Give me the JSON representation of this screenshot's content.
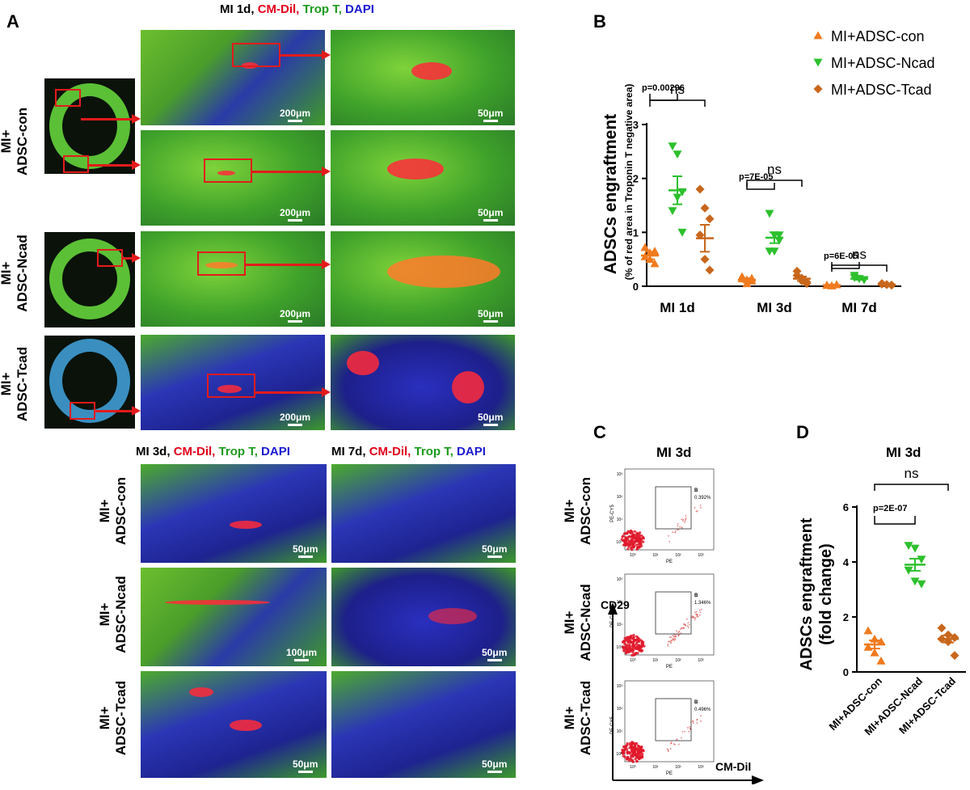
{
  "panels": {
    "A": "A",
    "B": "B",
    "C": "C",
    "D": "D"
  },
  "panelA": {
    "header_1d": {
      "time": "MI 1d,",
      "dye": "CM-Dil,",
      "trop": "Trop T,",
      "dapi": "DAPI"
    },
    "header_3d": {
      "time": "MI 3d,",
      "dye": "CM-Dil,",
      "trop": "Trop T,",
      "dapi": "DAPI"
    },
    "header_7d": {
      "time": "MI 7d,",
      "dye": "CM-Dil,",
      "trop": "Trop T,",
      "dapi": "DAPI"
    },
    "row_con": {
      "line1": "MI+",
      "line2": "ADSC-con"
    },
    "row_ncad": {
      "line1": "MI+",
      "line2": "ADSC-Ncad"
    },
    "row_tcad": {
      "line1": "MI+",
      "line2": "ADSC-Tcad"
    },
    "scalebars": {
      "s200": "200μm",
      "s50": "50μm",
      "s100": "100μm"
    }
  },
  "panelB": {
    "legend": [
      "MI+ADSC-con",
      "MI+ADSC-Ncad",
      "MI+ADSC-Tcad"
    ],
    "ylabel_main": "ADSCs engraftment",
    "ylabel_sub": "(% of red area in Troponin T negative area)",
    "ns": "ns",
    "pvals": [
      "p=0.00296",
      "p=7E-05",
      "p=6E-05"
    ],
    "colors": {
      "con": "#f07a1e",
      "ncad": "#2dc02d",
      "tcad": "#c8671c"
    },
    "chart_data": {
      "type": "scatter",
      "categories": [
        "MI 1d",
        "MI 3d",
        "MI 7d"
      ],
      "ylim": [
        0,
        3
      ],
      "yticks": [
        "0",
        "1",
        "2",
        "3"
      ],
      "series": [
        {
          "name": "MI+ADSC-con",
          "points": [
            [
              0.72,
              0.5,
              0.42,
              0.55,
              0.62,
              0.65
            ],
            [
              0.18,
              0.05,
              0.1,
              0.14,
              0.12,
              0.15
            ],
            [
              0.02,
              0.01,
              0.03,
              0.02,
              0.01,
              0.03
            ]
          ],
          "mean": [
            0.57,
            0.12,
            0.02
          ],
          "sem": [
            0.07,
            0.03,
            0.01
          ]
        },
        {
          "name": "MI+ADSC-Ncad",
          "points": [
            [
              2.6,
              2.45,
              1.75,
              1.4,
              1.65,
              1.0
            ],
            [
              1.35,
              0.95,
              0.85,
              0.65,
              0.65,
              0.95
            ],
            [
              0.2,
              0.14,
              0.12,
              0.16,
              0.14,
              0.12
            ]
          ],
          "mean": [
            1.78,
            0.9,
            0.14
          ],
          "sem": [
            0.26,
            0.1,
            0.02
          ]
        },
        {
          "name": "MI+ADSC-Tcad",
          "points": [
            [
              1.8,
              1.45,
              1.25,
              0.95,
              0.5,
              0.3
            ],
            [
              0.28,
              0.1,
              0.05,
              0.2,
              0.15,
              0.08
            ],
            [
              0.05,
              0.03,
              0.02,
              0.04,
              0.03,
              0.02
            ]
          ],
          "mean": [
            0.89,
            0.14,
            0.03
          ],
          "sem": [
            0.25,
            0.04,
            0.01
          ]
        }
      ]
    }
  },
  "panelC": {
    "title": "MI 3d",
    "gate_label": "B",
    "gates": [
      "0.392%",
      "1.346%",
      "0.496%"
    ],
    "axis_y": "CD29",
    "axis_x": "CM-Dil",
    "facs_ylabel": "PE-CY5",
    "facs_xlabel": "PE",
    "ticks_x": [
      "10⁰",
      "10¹",
      "10²",
      "10³"
    ],
    "ticks_y": [
      "10³",
      "10²",
      "10¹",
      "10⁰"
    ]
  },
  "panelD": {
    "title": "MI 3d",
    "ylabel_1": "ADSCs engraftment",
    "ylabel_2": "(fold change)",
    "ns": "ns",
    "pval": "p=2E-07",
    "chart_data": {
      "type": "scatter",
      "categories": [
        "MI+ADSC-con",
        "MI+ADSC-Ncad",
        "MI+ADSC-Tcad"
      ],
      "ylim": [
        0,
        6
      ],
      "yticks": [
        "0",
        "2",
        "4",
        "6"
      ],
      "series": [
        {
          "name": "MI+ADSC-con",
          "values": [
            1.5,
            1.2,
            1.1,
            0.9,
            0.7,
            0.4
          ],
          "mean": 1.0,
          "sem": 0.15
        },
        {
          "name": "MI+ADSC-Ncad",
          "values": [
            4.6,
            4.5,
            4.1,
            3.7,
            3.3,
            3.2
          ],
          "mean": 3.9,
          "sem": 0.22
        },
        {
          "name": "MI+ADSC-Tcad",
          "values": [
            1.6,
            1.35,
            1.25,
            1.2,
            1.1,
            0.6
          ],
          "mean": 1.2,
          "sem": 0.13
        }
      ]
    }
  }
}
